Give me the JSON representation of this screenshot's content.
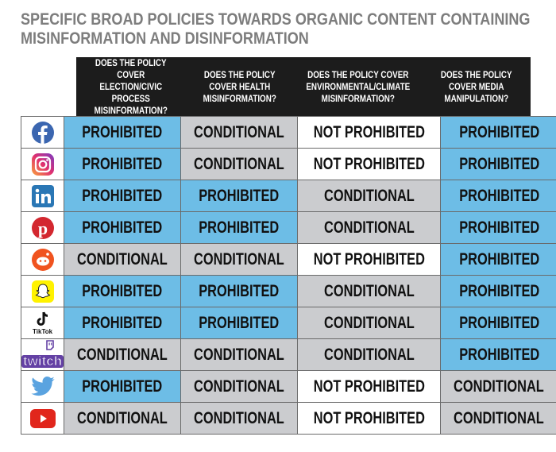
{
  "title": "SPECIFIC BROAD POLICIES TOWARDS ORGANIC CONTENT CONTAINING MISINFORMATION AND DISINFORMATION",
  "columns": [
    "DOES THE POLICY COVER ELECTION/CIVIC PROCESS MISINFORMATION?",
    "DOES THE POLICY COVER HEALTH MISINFORMATION?",
    "DOES THE POLICY COVER ENVIRONMENTAL/CLIMATE MISINFORMATION?",
    "DOES THE POLICY COVER MEDIA MANIPULATION?"
  ],
  "colors": {
    "prohibited": "#6dbde6",
    "conditional": "#cbcccf",
    "not_prohibited": "#ffffff",
    "header": "#1c1c1c"
  },
  "rows": [
    {
      "platform": "facebook-icon",
      "values": [
        "PROHIBITED",
        "CONDITIONAL",
        "NOT PROHIBITED",
        "PROHIBITED"
      ]
    },
    {
      "platform": "instagram-icon",
      "values": [
        "PROHIBITED",
        "CONDITIONAL",
        "NOT PROHIBITED",
        "PROHIBITED"
      ]
    },
    {
      "platform": "linkedin-icon",
      "values": [
        "PROHIBITED",
        "PROHIBITED",
        "CONDITIONAL",
        "PROHIBITED"
      ]
    },
    {
      "platform": "pinterest-icon",
      "values": [
        "PROHIBITED",
        "PROHIBITED",
        "CONDITIONAL",
        "PROHIBITED"
      ]
    },
    {
      "platform": "reddit-icon",
      "values": [
        "CONDITIONAL",
        "CONDITIONAL",
        "NOT PROHIBITED",
        "PROHIBITED"
      ]
    },
    {
      "platform": "snapchat-icon",
      "values": [
        "PROHIBITED",
        "PROHIBITED",
        "CONDITIONAL",
        "PROHIBITED"
      ]
    },
    {
      "platform": "tiktok-icon",
      "logo_text": "TikTok",
      "values": [
        "PROHIBITED",
        "PROHIBITED",
        "CONDITIONAL",
        "PROHIBITED"
      ]
    },
    {
      "platform": "twitch-icon",
      "logo_text": "twitch",
      "values": [
        "CONDITIONAL",
        "CONDITIONAL",
        "CONDITIONAL",
        "PROHIBITED"
      ]
    },
    {
      "platform": "twitter-icon",
      "values": [
        "PROHIBITED",
        "CONDITIONAL",
        "NOT PROHIBITED",
        "CONDITIONAL"
      ]
    },
    {
      "platform": "youtube-icon",
      "values": [
        "CONDITIONAL",
        "CONDITIONAL",
        "NOT PROHIBITED",
        "CONDITIONAL"
      ]
    }
  ]
}
